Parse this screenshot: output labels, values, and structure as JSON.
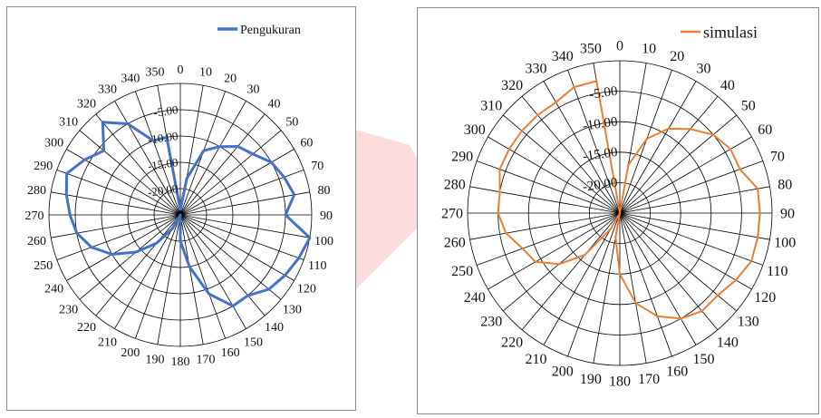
{
  "colors": {
    "pengukuran": "#4472c4",
    "simulasi": "#ed7d31",
    "grid": "#000000",
    "watermark": "#fbdcdc"
  },
  "angle_labels": [
    "0",
    "10",
    "20",
    "30",
    "40",
    "50",
    "60",
    "70",
    "80",
    "90",
    "100",
    "110",
    "120",
    "130",
    "140",
    "150",
    "160",
    "170",
    "180",
    "190",
    "200",
    "210",
    "220",
    "230",
    "240",
    "250",
    "260",
    "270",
    "280",
    "290",
    "300",
    "310",
    "320",
    "330",
    "340",
    "350"
  ],
  "radial_labels": [
    "-5.00",
    "-10.00",
    "-15.00",
    "-20.00"
  ],
  "chart_data": [
    {
      "type": "radar",
      "title": "",
      "legend": "top-right",
      "grid": true,
      "r_range": [
        -25,
        0
      ],
      "theta_unit": "degrees",
      "theta": [
        0,
        10,
        20,
        30,
        40,
        50,
        60,
        70,
        80,
        90,
        100,
        110,
        120,
        130,
        140,
        150,
        160,
        170,
        180,
        190,
        200,
        210,
        220,
        230,
        240,
        250,
        260,
        270,
        280,
        290,
        300,
        310,
        320,
        330,
        340,
        350
      ],
      "series": [
        {
          "name": "Pengukuran",
          "values": [
            -24,
            -18,
            -12,
            -10,
            -8,
            -7,
            -5,
            -4,
            -3,
            -5,
            0,
            -1,
            -2,
            -3,
            -5,
            -5,
            -9,
            -15,
            -20,
            -25,
            -25,
            -22,
            -18,
            -14,
            -10,
            -7,
            -5,
            -4,
            -3,
            -2,
            -4,
            -6,
            -2,
            -5,
            -10,
            -10
          ]
        }
      ]
    },
    {
      "type": "radar",
      "title": "",
      "legend": "top-right",
      "grid": true,
      "r_range": [
        -25,
        0
      ],
      "theta_unit": "degrees",
      "theta": [
        0,
        10,
        20,
        30,
        40,
        50,
        60,
        70,
        80,
        90,
        100,
        110,
        120,
        130,
        140,
        150,
        160,
        170,
        180,
        190,
        200,
        210,
        220,
        230,
        240,
        250,
        260,
        270,
        280,
        290,
        300,
        310,
        320,
        330,
        340,
        350
      ],
      "series": [
        {
          "name": "simulasi",
          "values": [
            -25,
            -17,
            -12,
            -9,
            -7,
            -5,
            -4,
            -4,
            -2,
            -2,
            -2,
            -2,
            -3,
            -4,
            -4,
            -5,
            -7,
            -10,
            -15,
            -21,
            -25,
            -22,
            -16,
            -12,
            -9,
            -8,
            -6,
            -5,
            -5,
            -4,
            -4,
            -4,
            -4,
            -4,
            -3,
            -3
          ]
        }
      ]
    }
  ]
}
